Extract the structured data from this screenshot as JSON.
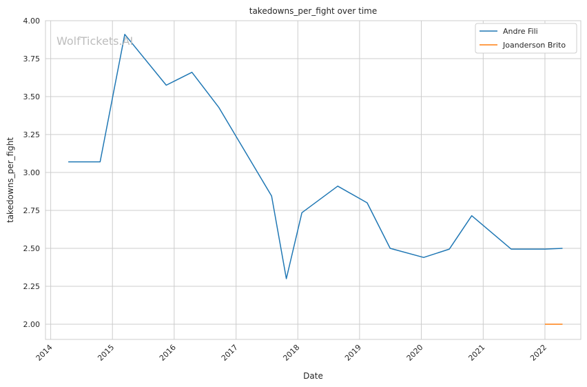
{
  "chart_data": {
    "type": "line",
    "title": "takedowns_per_fight over time",
    "xlabel": "Date",
    "ylabel": "takedowns_per_fight",
    "watermark": "WolfTickets.AI",
    "x_axis": {
      "type": "date",
      "range": [
        "2013-12-01",
        "2022-08-01"
      ],
      "ticks": [
        "2014",
        "2015",
        "2016",
        "2017",
        "2018",
        "2019",
        "2020",
        "2021",
        "2022"
      ]
    },
    "y_axis": {
      "range": [
        1.9,
        4.0
      ],
      "ticks": [
        "2.00",
        "2.25",
        "2.50",
        "2.75",
        "3.00",
        "3.25",
        "3.50",
        "3.75",
        "4.00"
      ]
    },
    "grid": true,
    "legend_position": "top-right",
    "series": [
      {
        "name": "Andre Fili",
        "color": "#1f77b4",
        "points": [
          {
            "x": "2014-04-15",
            "y": 3.07
          },
          {
            "x": "2014-10-20",
            "y": 3.07
          },
          {
            "x": "2015-03-15",
            "y": 3.91
          },
          {
            "x": "2015-11-15",
            "y": 3.575
          },
          {
            "x": "2016-04-15",
            "y": 3.66
          },
          {
            "x": "2016-09-20",
            "y": 3.43
          },
          {
            "x": "2017-07-30",
            "y": 2.845
          },
          {
            "x": "2017-10-25",
            "y": 2.3
          },
          {
            "x": "2018-01-25",
            "y": 2.735
          },
          {
            "x": "2018-08-25",
            "y": 2.91
          },
          {
            "x": "2019-02-15",
            "y": 2.8
          },
          {
            "x": "2019-07-01",
            "y": 2.5
          },
          {
            "x": "2020-01-15",
            "y": 2.44
          },
          {
            "x": "2020-06-15",
            "y": 2.495
          },
          {
            "x": "2020-10-25",
            "y": 2.715
          },
          {
            "x": "2021-06-15",
            "y": 2.495
          },
          {
            "x": "2022-01-01",
            "y": 2.495
          },
          {
            "x": "2022-04-15",
            "y": 2.5
          }
        ]
      },
      {
        "name": "Joanderson Brito",
        "color": "#ff7f0e",
        "points": [
          {
            "x": "2022-01-01",
            "y": 2.0
          },
          {
            "x": "2022-04-15",
            "y": 2.0
          }
        ]
      }
    ]
  }
}
